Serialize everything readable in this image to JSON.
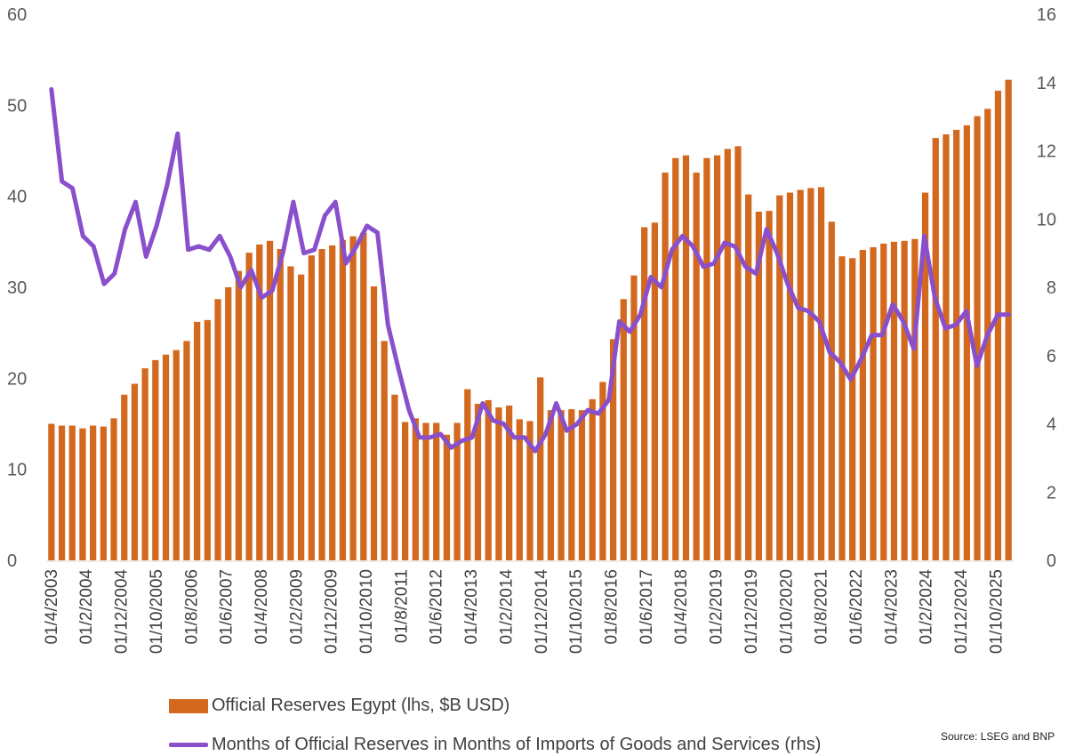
{
  "chart_data": {
    "type": "bar",
    "title": "",
    "xlabel": "",
    "ylabel": "",
    "ylim": [
      0,
      60
    ],
    "y2lim": [
      0,
      16
    ],
    "y_ticks": [
      "0",
      "10",
      "20",
      "30",
      "40",
      "50",
      "60"
    ],
    "y2_ticks": [
      "0",
      "2",
      "4",
      "6",
      "8",
      "10",
      "12",
      "14",
      "16"
    ],
    "x_tick_labels": [
      "01/4/2003",
      "01/2/2004",
      "01/12/2004",
      "01/10/2005",
      "01/8/2006",
      "01/6/2007",
      "01/4/2008",
      "01/2/2009",
      "01/12/2009",
      "01/10/2010",
      "01/8/2011",
      "01/6/2012",
      "01/4/2013",
      "01/2/2014",
      "01/12/2014",
      "01/10/2015",
      "01/8/2016",
      "01/6/2017",
      "01/4/2018",
      "01/2/2019",
      "01/12/2019",
      "01/10/2020",
      "01/8/2021",
      "01/6/2022",
      "01/4/2023",
      "01/2/2024",
      "01/12/2024",
      "01/10/2025"
    ],
    "legend_position": "bottom",
    "series": [
      {
        "name": "Official Reserves Egypt (lhs, $B USD)",
        "type": "bar",
        "axis": "left",
        "color": "#D2691E",
        "values": [
          15.0,
          14.8,
          14.8,
          14.5,
          14.8,
          14.7,
          15.6,
          18.2,
          19.4,
          21.1,
          22.0,
          22.6,
          23.1,
          24.1,
          26.2,
          26.4,
          28.7,
          30.0,
          31.8,
          33.8,
          34.7,
          35.1,
          34.2,
          32.3,
          31.4,
          33.5,
          34.2,
          34.6,
          35.2,
          35.6,
          36.0,
          30.1,
          24.1,
          18.2,
          15.2,
          15.6,
          15.1,
          15.1,
          13.8,
          15.1,
          18.8,
          17.2,
          17.6,
          16.8,
          17.0,
          15.5,
          15.3,
          20.1,
          16.5,
          16.5,
          16.6,
          16.5,
          17.7,
          19.6,
          24.3,
          28.7,
          31.3,
          36.6,
          37.1,
          42.6,
          44.2,
          44.5,
          42.6,
          44.2,
          44.5,
          45.2,
          45.5,
          40.2,
          38.3,
          38.4,
          40.1,
          40.4,
          40.7,
          40.9,
          41.0,
          37.2,
          33.4,
          33.2,
          34.1,
          34.4,
          34.8,
          35.0,
          35.1,
          35.3,
          40.4,
          46.4,
          46.8,
          47.3,
          47.8,
          48.8,
          49.6,
          51.6,
          52.8
        ],
        "legend_label": "Official Reserves Egypt (lhs, $B USD)"
      },
      {
        "name": "Months of Official Reserves in Months of Imports of Goods and Services (rhs)",
        "type": "line",
        "axis": "right",
        "color": "#8A4FCB",
        "values": [
          13.8,
          11.1,
          10.9,
          9.5,
          9.2,
          8.1,
          8.4,
          9.7,
          10.5,
          8.9,
          9.8,
          11.0,
          12.5,
          9.1,
          9.2,
          9.1,
          9.5,
          8.9,
          8.0,
          8.5,
          7.7,
          7.9,
          9.0,
          10.5,
          9.0,
          9.1,
          10.1,
          10.5,
          8.7,
          9.2,
          9.8,
          9.6,
          6.9,
          5.6,
          4.4,
          3.6,
          3.6,
          3.7,
          3.3,
          3.5,
          3.6,
          4.6,
          4.1,
          4.0,
          3.6,
          3.6,
          3.2,
          3.7,
          4.6,
          3.8,
          4.0,
          4.4,
          4.3,
          4.7,
          7.0,
          6.7,
          7.2,
          8.3,
          8.0,
          9.1,
          9.5,
          9.2,
          8.6,
          8.7,
          9.3,
          9.2,
          8.6,
          8.4,
          9.7,
          9.0,
          8.1,
          7.4,
          7.3,
          7.0,
          6.1,
          5.8,
          5.3,
          5.9,
          6.6,
          6.6,
          7.5,
          7.0,
          6.2,
          9.5,
          7.7,
          6.8,
          6.9,
          7.3,
          5.7,
          6.6,
          7.2,
          7.2
        ],
        "legend_label": "Months of Official Reserves in Months of Imports of Goods and Services (rhs)"
      }
    ],
    "source": "Source: LSEG and BNP"
  }
}
